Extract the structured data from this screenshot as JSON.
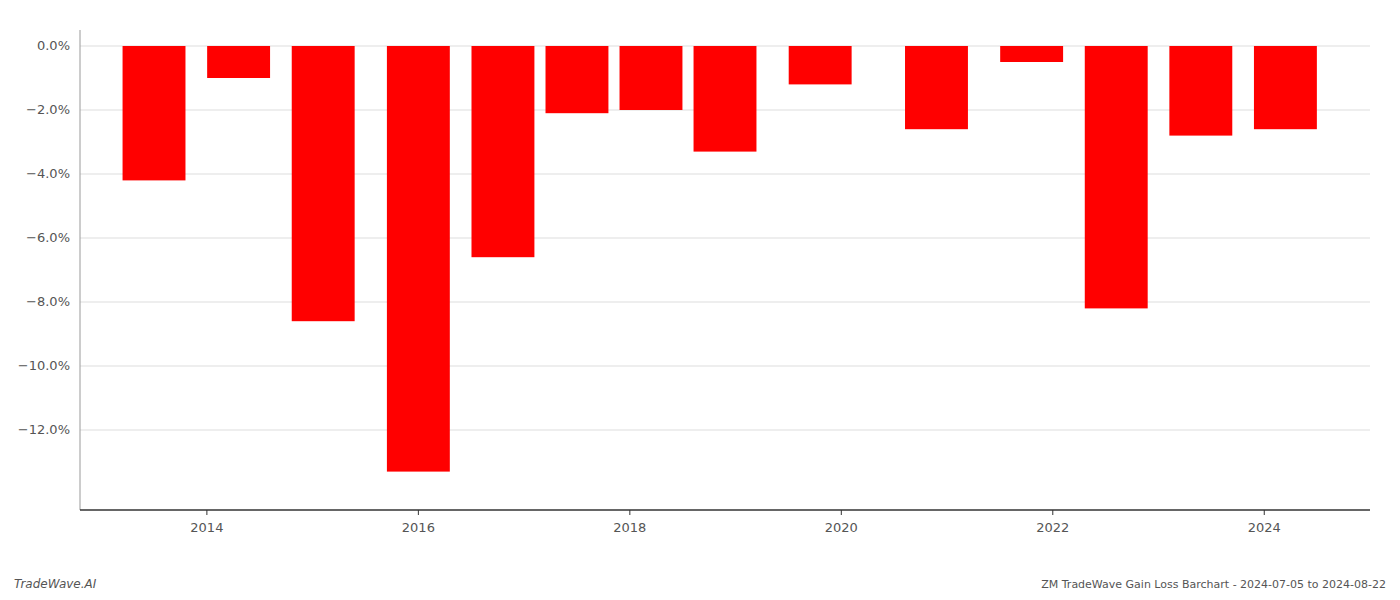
{
  "chart_data": {
    "type": "bar",
    "x": [
      2013.5,
      2014.3,
      2015.1,
      2016.0,
      2016.8,
      2017.5,
      2018.2,
      2018.9,
      2019.8,
      2020.9,
      2021.8,
      2022.6,
      2023.4,
      2024.2
    ],
    "values": [
      -4.2,
      -1.0,
      -8.6,
      -13.3,
      -6.6,
      -2.1,
      -2.0,
      -3.3,
      -1.2,
      -2.6,
      -0.5,
      -8.2,
      -2.8,
      -2.6
    ],
    "color": "#ff0000",
    "xlim": [
      2012.8,
      2025.0
    ],
    "xticks": [
      2014,
      2016,
      2018,
      2020,
      2022,
      2024
    ],
    "ylim": [
      -14.5,
      0.5
    ],
    "yticks": [
      {
        "value": 0,
        "label": "0.0%"
      },
      {
        "value": -2,
        "label": "−2.0%"
      },
      {
        "value": -4,
        "label": "−4.0%"
      },
      {
        "value": -6,
        "label": "−6.0%"
      },
      {
        "value": -8,
        "label": "−8.0%"
      },
      {
        "value": -10,
        "label": "−10.0%"
      },
      {
        "value": -12,
        "label": "−12.0%"
      }
    ],
    "grid": true,
    "annotations": [
      "TradeWave.AI",
      "ZM TradeWave Gain Loss Barchart - 2024-07-05 to 2024-08-22"
    ]
  }
}
